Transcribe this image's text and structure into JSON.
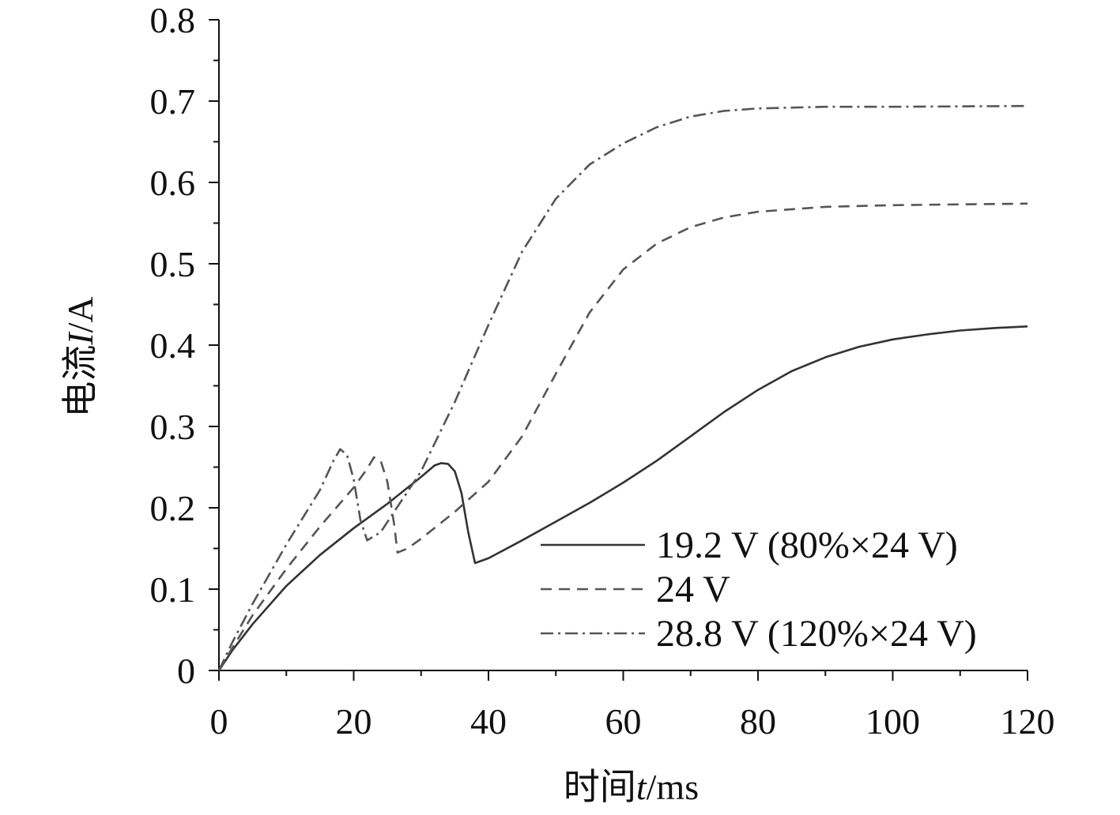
{
  "chart_data": {
    "type": "line",
    "xlabel": {
      "prefix": "时间",
      "var": "t",
      "suffix": "/ms"
    },
    "ylabel": {
      "prefix": "电流",
      "var": "I",
      "suffix": "/A"
    },
    "xlim": [
      0,
      120
    ],
    "ylim": [
      0,
      0.8
    ],
    "x_ticks": [
      0,
      20,
      40,
      60,
      80,
      100,
      120
    ],
    "x_tick_labels": [
      "0",
      "20",
      "40",
      "60",
      "80",
      "100",
      "120"
    ],
    "y_ticks": [
      0,
      0.1,
      0.2,
      0.3,
      0.4,
      0.5,
      0.6,
      0.7,
      0.8
    ],
    "y_tick_labels": [
      "0",
      "0.1",
      "0.2",
      "0.3",
      "0.4",
      "0.5",
      "0.6",
      "0.7",
      "0.8"
    ],
    "grid": false,
    "legend_position": "bottom-right",
    "series": [
      {
        "name": "19.2 V (80%×24 V)",
        "style": "solid",
        "color": "#333333",
        "points": [
          [
            0,
            0
          ],
          [
            2,
            0.025
          ],
          [
            5,
            0.057
          ],
          [
            10,
            0.104
          ],
          [
            15,
            0.142
          ],
          [
            20,
            0.175
          ],
          [
            25,
            0.205
          ],
          [
            30,
            0.238
          ],
          [
            32,
            0.252
          ],
          [
            33,
            0.255
          ],
          [
            34,
            0.254
          ],
          [
            35,
            0.245
          ],
          [
            36,
            0.218
          ],
          [
            37,
            0.17
          ],
          [
            38,
            0.132
          ],
          [
            40,
            0.138
          ],
          [
            45,
            0.16
          ],
          [
            50,
            0.183
          ],
          [
            55,
            0.206
          ],
          [
            60,
            0.231
          ],
          [
            65,
            0.258
          ],
          [
            70,
            0.288
          ],
          [
            75,
            0.318
          ],
          [
            80,
            0.345
          ],
          [
            85,
            0.368
          ],
          [
            90,
            0.385
          ],
          [
            95,
            0.398
          ],
          [
            100,
            0.407
          ],
          [
            105,
            0.413
          ],
          [
            110,
            0.418
          ],
          [
            115,
            0.421
          ],
          [
            120,
            0.423
          ]
        ]
      },
      {
        "name": "24 V",
        "style": "dashed",
        "color": "#555555",
        "points": [
          [
            0,
            0
          ],
          [
            2,
            0.028
          ],
          [
            5,
            0.068
          ],
          [
            10,
            0.125
          ],
          [
            15,
            0.177
          ],
          [
            20,
            0.225
          ],
          [
            22,
            0.248
          ],
          [
            23,
            0.262
          ],
          [
            24,
            0.258
          ],
          [
            25,
            0.232
          ],
          [
            26,
            0.18
          ],
          [
            26.5,
            0.145
          ],
          [
            28,
            0.15
          ],
          [
            30,
            0.162
          ],
          [
            35,
            0.195
          ],
          [
            40,
            0.232
          ],
          [
            45,
            0.288
          ],
          [
            50,
            0.365
          ],
          [
            55,
            0.44
          ],
          [
            60,
            0.493
          ],
          [
            65,
            0.525
          ],
          [
            70,
            0.545
          ],
          [
            75,
            0.557
          ],
          [
            80,
            0.564
          ],
          [
            90,
            0.57
          ],
          [
            100,
            0.572
          ],
          [
            120,
            0.574
          ]
        ]
      },
      {
        "name": "28.8 V (120%×24 V)",
        "style": "dashdot",
        "color": "#555555",
        "points": [
          [
            0,
            0
          ],
          [
            2,
            0.035
          ],
          [
            5,
            0.082
          ],
          [
            10,
            0.155
          ],
          [
            15,
            0.222
          ],
          [
            17,
            0.258
          ],
          [
            18,
            0.272
          ],
          [
            19,
            0.265
          ],
          [
            20,
            0.235
          ],
          [
            21,
            0.185
          ],
          [
            22,
            0.16
          ],
          [
            24,
            0.17
          ],
          [
            26,
            0.195
          ],
          [
            30,
            0.245
          ],
          [
            35,
            0.33
          ],
          [
            40,
            0.425
          ],
          [
            45,
            0.515
          ],
          [
            50,
            0.58
          ],
          [
            55,
            0.622
          ],
          [
            60,
            0.648
          ],
          [
            65,
            0.668
          ],
          [
            70,
            0.681
          ],
          [
            75,
            0.688
          ],
          [
            80,
            0.691
          ],
          [
            90,
            0.693
          ],
          [
            100,
            0.693
          ],
          [
            120,
            0.694
          ]
        ]
      }
    ]
  }
}
